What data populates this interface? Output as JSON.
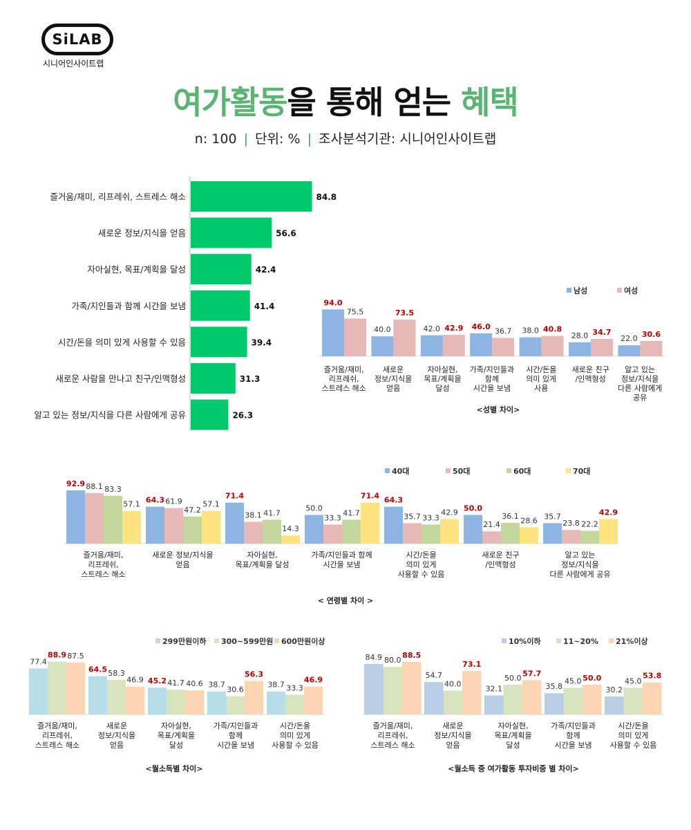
{
  "header": {
    "logo_text": "SiLAB",
    "logo_sub": "시니어인사이트랩",
    "title_part1": "여가활동",
    "title_part2": "을 통해 얻는 ",
    "title_part3": "혜택",
    "sub_n": "n: 100",
    "sub_sep": "|",
    "sub_unit": "단위: %",
    "sub_source": "조사분석기관: 시니어인사이트랩"
  },
  "colors": {
    "green": "#00c96b",
    "male": "#8eb4e3",
    "female": "#e6b9b8",
    "age40": "#8eb4e3",
    "age50": "#e6b9b8",
    "age60": "#c3d69b",
    "age70": "#ffe37f",
    "inc1": "#b7dde8",
    "inc2": "#d7e4bd",
    "inc3": "#fcd5b5",
    "inv1": "#b9cde5",
    "inv2": "#d7e4bd",
    "inv3": "#fcd5b5",
    "highlight": "#c00000"
  },
  "chart_data": [
    {
      "type": "bar",
      "orientation": "horizontal",
      "categories": [
        "즐거움/재미, 리프레쉬, 스트레스 해소",
        "새로운 정보/지식을 얻음",
        "자아실현, 목표/계획을 달성",
        "가족/지인들과 함께 시간을 보냄",
        "시간/돈을 의미 있게 사용할 수 있음",
        "새로운 사람을 만나고 친구/인맥형성",
        "알고 있는 정보/지식을 다른 사람에게 공유"
      ],
      "values": [
        84.8,
        56.6,
        42.4,
        41.4,
        39.4,
        31.3,
        26.3
      ]
    },
    {
      "type": "bar",
      "title": "<성별 차이>",
      "categories": [
        [
          "즐거움/재미,",
          "리프레쉬,",
          "스트레스 해소"
        ],
        [
          "새로운",
          "정보/지식을",
          "얻음"
        ],
        [
          "자아실현,",
          "목표/계획을",
          "달성"
        ],
        [
          "가족/지인들과",
          "함께",
          "시간을 보냄"
        ],
        [
          "시간/돈을",
          "의미 있게",
          "사용"
        ],
        [
          "새로운 친구",
          "/인맥형성"
        ],
        [
          "알고 있는",
          "정보/지식을",
          "다른 사람에게",
          "공유"
        ]
      ],
      "series": [
        {
          "name": "남성",
          "values": [
            94.0,
            40.0,
            42.0,
            46.0,
            38.0,
            28.0,
            22.0
          ]
        },
        {
          "name": "여성",
          "values": [
            75.5,
            73.5,
            42.9,
            36.7,
            40.8,
            34.7,
            30.6
          ]
        }
      ],
      "legend": "top-right"
    },
    {
      "type": "bar",
      "title": "< 연령별 차이 >",
      "categories": [
        [
          "즐거움/재미,",
          "리프레쉬,",
          "스트레스 해소"
        ],
        [
          "새로운 정보/지식을",
          "얻음"
        ],
        [
          "자아실현,",
          "목표/계획을 달성"
        ],
        [
          "가족/지인들과 함께",
          "시간을 보냄"
        ],
        [
          "시간/돈을",
          "의미 있게",
          "사용할 수 있음"
        ],
        [
          "새로운  친구",
          "/인맥형성"
        ],
        [
          "알고 있는",
          "정보/지식을",
          "다른 사람에게 공유"
        ]
      ],
      "series": [
        {
          "name": "40대",
          "values": [
            92.9,
            64.3,
            71.4,
            50.0,
            64.3,
            50.0,
            35.7
          ]
        },
        {
          "name": "50대",
          "values": [
            88.1,
            61.9,
            38.1,
            33.3,
            35.7,
            21.4,
            23.8
          ]
        },
        {
          "name": "60대",
          "values": [
            83.3,
            47.2,
            41.7,
            41.7,
            33.3,
            36.1,
            22.2
          ]
        },
        {
          "name": "70대",
          "values": [
            57.1,
            57.1,
            14.3,
            71.4,
            42.9,
            28.6,
            42.9
          ]
        }
      ],
      "legend": "top-right"
    },
    {
      "type": "bar",
      "title": "<월소득별 차이>",
      "categories": [
        [
          "즐거움/재미,",
          "리프레쉬,",
          "스트레스 해소"
        ],
        [
          "새로운",
          "정보/지식을",
          "얻음"
        ],
        [
          "자아실현,",
          "목표/계획을",
          "달성"
        ],
        [
          "가족/지인들과",
          "함께",
          "시간을 보냄"
        ],
        [
          "시간/돈을",
          "의미 있게",
          "사용할 수 있음"
        ]
      ],
      "series": [
        {
          "name": "299만원이하",
          "values": [
            77.4,
            64.5,
            45.2,
            38.7,
            38.7
          ]
        },
        {
          "name": "300~599만원",
          "values": [
            88.9,
            58.3,
            41.7,
            30.6,
            33.3
          ]
        },
        {
          "name": "600만원이상",
          "values": [
            87.5,
            46.9,
            40.6,
            56.3,
            46.9
          ]
        }
      ],
      "legend": "top-right"
    },
    {
      "type": "bar",
      "title": "<월소득 중 여가활동 투자비중 별 차이>",
      "categories": [
        [
          "즐거움/재미,",
          "리프레쉬,",
          "스트레스 해소"
        ],
        [
          "새로운",
          "정보/지식을",
          "얻음"
        ],
        [
          "자아실현,",
          "목표/계획을",
          "달성"
        ],
        [
          "가족/지인들과",
          "함께",
          "시간을 보냄"
        ],
        [
          "시간/돈을",
          "의미 있게",
          "사용할 수 있음"
        ]
      ],
      "series": [
        {
          "name": "10%이하",
          "values": [
            84.9,
            54.7,
            32.1,
            35.8,
            30.2
          ]
        },
        {
          "name": "11~20%",
          "values": [
            80.0,
            40.0,
            50.0,
            45.0,
            45.0
          ]
        },
        {
          "name": "21%이상",
          "values": [
            88.5,
            73.1,
            57.7,
            50.0,
            53.8
          ]
        }
      ],
      "legend": "top-right"
    }
  ]
}
